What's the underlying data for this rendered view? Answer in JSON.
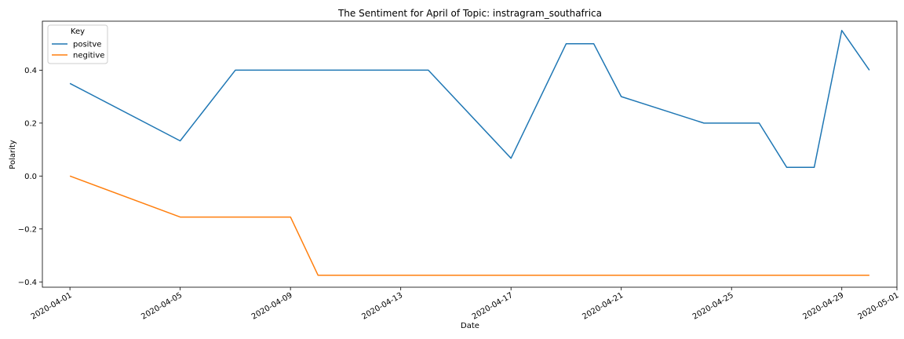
{
  "chart_data": {
    "type": "line",
    "title": "The Sentiment for April of Topic: instragram_southafrica",
    "xlabel": "Date",
    "ylabel": "Polarity",
    "xlim": [
      "2020-03-31",
      "2020-05-01"
    ],
    "ylim": [
      -0.42,
      0.585
    ],
    "x_ticks": [
      "2020-04-01",
      "2020-04-05",
      "2020-04-09",
      "2020-04-13",
      "2020-04-17",
      "2020-04-21",
      "2020-04-25",
      "2020-04-29",
      "2020-05-01"
    ],
    "y_ticks": [
      -0.4,
      -0.2,
      0.0,
      0.2,
      0.4
    ],
    "y_tick_labels": [
      "−0.4",
      "−0.2",
      "0.0",
      "0.2",
      "0.4"
    ],
    "grid": false,
    "legend": {
      "title": "Key",
      "placement": "top-left"
    },
    "series": [
      {
        "name": "positve",
        "color": "#1f77b4",
        "points": [
          [
            "2020-04-01",
            0.35
          ],
          [
            "2020-04-05",
            0.133
          ],
          [
            "2020-04-07",
            0.4
          ],
          [
            "2020-04-14",
            0.4
          ],
          [
            "2020-04-17",
            0.067
          ],
          [
            "2020-04-19",
            0.5
          ],
          [
            "2020-04-20",
            0.5
          ],
          [
            "2020-04-21",
            0.3
          ],
          [
            "2020-04-24",
            0.2
          ],
          [
            "2020-04-26",
            0.2
          ],
          [
            "2020-04-27",
            0.033
          ],
          [
            "2020-04-28",
            0.033
          ],
          [
            "2020-04-29",
            0.55
          ],
          [
            "2020-04-30",
            0.4
          ]
        ]
      },
      {
        "name": "negitive",
        "color": "#ff7f0e",
        "points": [
          [
            "2020-04-01",
            0.0
          ],
          [
            "2020-04-05",
            -0.155
          ],
          [
            "2020-04-09",
            -0.155
          ],
          [
            "2020-04-10",
            -0.375
          ],
          [
            "2020-04-30",
            -0.375
          ]
        ]
      }
    ]
  }
}
